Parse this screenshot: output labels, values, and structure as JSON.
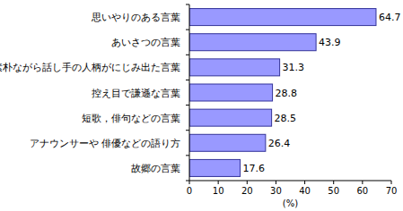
{
  "chart_data": {
    "type": "bar",
    "orientation": "horizontal",
    "categories": [
      "思いやりのある言葉",
      "あいさつの言葉",
      "素朴ながら話し手の人柄がにじみ出た言葉",
      "控え目で謙遜な言葉",
      "短歌，俳句などの言葉",
      "アナウンサーや 俳優などの語り方",
      "故郷の言葉"
    ],
    "values": [
      64.7,
      43.9,
      31.3,
      28.8,
      28.5,
      26.4,
      17.6
    ],
    "color": "#9999ff",
    "xlim": [
      0,
      70
    ],
    "xticks": [
      0,
      10,
      20,
      30,
      40,
      50,
      60,
      70
    ],
    "xlabel": "(%)",
    "data_labels": true,
    "grid": false
  }
}
